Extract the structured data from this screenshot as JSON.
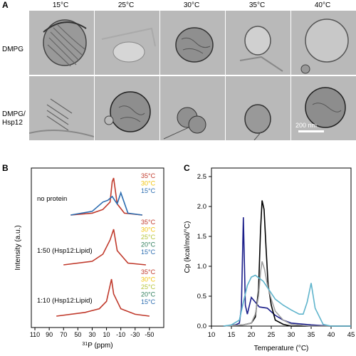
{
  "panel_a": {
    "label": "A",
    "temperatures": [
      "15°C",
      "25°C",
      "30°C",
      "35°C",
      "40°C"
    ],
    "rows": [
      [
        "DMPG"
      ],
      [
        "DMPG/",
        "Hsp12"
      ]
    ],
    "scale_bar": "200 nm"
  },
  "panel_b": {
    "label": "B",
    "ylabel": "Intensity (a.u.)",
    "xlabel_super": "31",
    "xlabel_rest": "P (ppm)",
    "xticks": [
      "110",
      "90",
      "70",
      "50",
      "30",
      "10",
      "-10",
      "-30",
      "-50"
    ],
    "groups": [
      {
        "name": "no protein",
        "temps": [
          "35°C",
          "30°C",
          "15°C"
        ]
      },
      {
        "name": "1:50 (Hsp12:Lipid)",
        "temps": [
          "35°C",
          "30°C",
          "25°C",
          "20°C",
          "15°C"
        ]
      },
      {
        "name": "1:10 (Hsp12:Lipid)",
        "temps": [
          "35°C",
          "30°C",
          "25°C",
          "20°C",
          "15°C"
        ]
      }
    ],
    "temp_colors": {
      "35°C": "#c0392b",
      "30°C": "#f1c40f",
      "25°C": "#b5c43a",
      "20°C": "#2e7d5b",
      "15°C": "#2b6cb0"
    }
  },
  "panel_c": {
    "label": "C",
    "ylabel": "Cp (kcal/mol/°C)",
    "xlabel": "Temperature (°C)",
    "xticks": [
      "10",
      "15",
      "20",
      "25",
      "30",
      "35",
      "40",
      "45"
    ],
    "yticks": [
      "0.0",
      "0.5",
      "1.0",
      "1.5",
      "2.0",
      "2.5"
    ]
  },
  "chart_data": [
    {
      "type": "line",
      "title": "",
      "xlabel": "31P (ppm)",
      "ylabel": "Intensity (a.u.)",
      "xlim": [
        115,
        -70
      ],
      "series": [
        {
          "name": "no protein 35°C",
          "x": [
            60,
            30,
            15,
            5,
            2,
            0,
            -5,
            -15,
            -40
          ],
          "y": [
            0,
            0.05,
            0.15,
            0.35,
            0.9,
            1.0,
            0.3,
            0.05,
            0
          ]
        },
        {
          "name": "no protein 15°C",
          "x": [
            60,
            30,
            15,
            8,
            2,
            -5,
            -10,
            -20,
            -40
          ],
          "y": [
            0,
            0.1,
            0.35,
            0.4,
            0.5,
            0.3,
            0.6,
            0.05,
            0
          ]
        },
        {
          "name": "1:50 35°C",
          "x": [
            70,
            30,
            15,
            5,
            0,
            -5,
            -20,
            -45
          ],
          "y": [
            0,
            0.1,
            0.3,
            0.7,
            1.0,
            0.4,
            0.05,
            0
          ]
        },
        {
          "name": "1:10 35°C",
          "x": [
            80,
            40,
            20,
            10,
            3,
            0,
            -10,
            -30,
            -50
          ],
          "y": [
            0,
            0.1,
            0.2,
            0.4,
            1.0,
            0.6,
            0.2,
            0.05,
            0
          ]
        }
      ]
    },
    {
      "type": "line",
      "title": "",
      "xlabel": "Temperature (°C)",
      "ylabel": "Cp (kcal/mol/°C)",
      "xlim": [
        10,
        45
      ],
      "ylim": [
        0,
        2.5
      ],
      "series": [
        {
          "name": "",
          "color": "#1c1f8a",
          "x": [
            13,
            16,
            17,
            17.5,
            18,
            18.5,
            19,
            20,
            21,
            22,
            24,
            26,
            28,
            30,
            35,
            40,
            45
          ],
          "y": [
            0,
            0.02,
            0.05,
            0.3,
            1.82,
            0.35,
            0.2,
            0.48,
            0.4,
            0.32,
            0.3,
            0.18,
            0.1,
            0.05,
            0.02,
            0,
            0
          ]
        },
        {
          "name": "",
          "color": "#000000",
          "x": [
            13,
            18,
            20,
            21,
            21.8,
            22.3,
            22.7,
            23.2,
            23.7,
            24.2,
            25,
            26,
            28,
            30,
            35,
            45
          ],
          "y": [
            0,
            0.02,
            0.05,
            0.15,
            0.6,
            1.6,
            2.1,
            1.95,
            1.3,
            0.7,
            0.35,
            0.1,
            0.03,
            0,
            0,
            0
          ]
        },
        {
          "name": "",
          "color": "#a0a0a0",
          "x": [
            13,
            18,
            20,
            21,
            21.8,
            22.3,
            22.7,
            23.3,
            24,
            25,
            26,
            28,
            30,
            35,
            45
          ],
          "y": [
            0,
            0.02,
            0.05,
            0.2,
            0.5,
            0.9,
            1.08,
            0.95,
            0.7,
            0.45,
            0.25,
            0.1,
            0.03,
            0,
            0
          ]
        },
        {
          "name": "",
          "color": "#5fb4cc",
          "x": [
            13,
            15,
            17,
            18,
            19,
            20,
            21,
            22,
            23,
            24,
            25,
            26,
            28,
            30,
            32,
            33,
            34,
            35,
            36,
            38,
            40,
            45
          ],
          "y": [
            0,
            0.02,
            0.1,
            0.4,
            0.68,
            0.82,
            0.85,
            0.8,
            0.75,
            0.65,
            0.55,
            0.45,
            0.35,
            0.27,
            0.2,
            0.2,
            0.4,
            0.72,
            0.3,
            0.03,
            0,
            0
          ]
        }
      ]
    }
  ]
}
